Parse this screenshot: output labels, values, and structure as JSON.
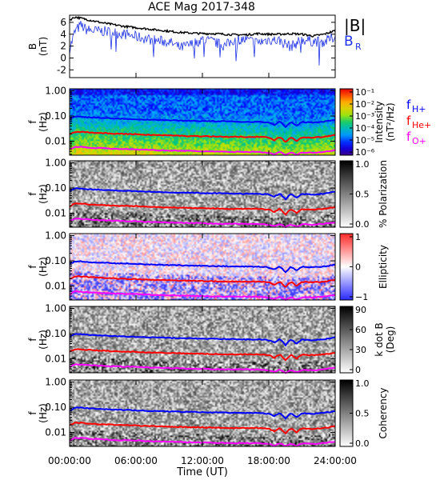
{
  "chart_data": {
    "title": "ACE Mag 2017-348",
    "type": "line",
    "x_ticks": [
      "00:00:00",
      "06:00:00",
      "12:00:00",
      "18:00:00",
      "24:00:00"
    ],
    "x_tick_hours": [
      0,
      6,
      12,
      18,
      24
    ],
    "x_range_hours": [
      0,
      24
    ],
    "xlabel": "Time (UT)",
    "colors": {
      "b_total": "#000000",
      "b_r": "#1f33e6",
      "h": "#0000ff",
      "he": "#ff0000",
      "o": "#ff00ff"
    },
    "panels": {
      "field": {
        "ylabel_line1": "B",
        "ylabel_line2": "(nT)",
        "y_ticks": [
          "6",
          "4",
          "2",
          "0",
          "-2"
        ],
        "y_tick_values": [
          6,
          4,
          2,
          0,
          -2
        ],
        "ylim": [
          -3.3,
          7.2
        ],
        "legend": {
          "total": "|B|",
          "r_main": "B",
          "r_sub": "R"
        },
        "b_total": {
          "hours": [
            0,
            0.5,
            1,
            1.5,
            2,
            3,
            4,
            5,
            6,
            7,
            8,
            9,
            10,
            11,
            12,
            13,
            14,
            15,
            16,
            17,
            18,
            19,
            20,
            21,
            22,
            23,
            24
          ],
          "values": [
            6.4,
            6.9,
            6.7,
            6.5,
            6.3,
            5.9,
            5.6,
            5.3,
            5.1,
            4.9,
            4.7,
            4.5,
            4.3,
            4.2,
            4.1,
            4.1,
            4.0,
            3.9,
            3.9,
            4.1,
            4.0,
            4.0,
            4.1,
            4.0,
            3.7,
            4.0,
            4.6
          ]
        },
        "b_r": {
          "hours": [
            0,
            0.5,
            1,
            1.5,
            2,
            3,
            4,
            5,
            6,
            7,
            8,
            9,
            10,
            11,
            12,
            13,
            14,
            15,
            16,
            17,
            18,
            19,
            20,
            21,
            22,
            23,
            24
          ],
          "values": [
            1.5,
            4.5,
            5.5,
            4.8,
            4.6,
            4.5,
            4.3,
            4.0,
            3.6,
            3.2,
            2.9,
            2.7,
            1.7,
            2.3,
            3.1,
            2.7,
            2.0,
            3.2,
            3.0,
            2.6,
            3.1,
            2.9,
            1.9,
            3.1,
            2.8,
            2.7,
            3.6
          ]
        }
      },
      "spectra": [
        {
          "key": "intensity",
          "cbar_title1": "Intensity",
          "cbar_title2": "(nT²/Hz)",
          "cbar_ticks": [
            "10⁻¹",
            "10⁻²",
            "10⁻³",
            "10⁻⁴",
            "10⁻⁵",
            "10⁻⁶"
          ],
          "cbar_type": "rainbow",
          "show_legend": true
        },
        {
          "key": "polarization",
          "cbar_title1": "% Polarization",
          "cbar_title2": "",
          "cbar_ticks": [
            "1.0",
            "0.5",
            "0.0"
          ],
          "cbar_type": "gray",
          "show_legend": false
        },
        {
          "key": "ellipticity",
          "cbar_title1": "Ellipticity",
          "cbar_title2": "",
          "cbar_ticks": [
            "1",
            "0",
            "−1"
          ],
          "cbar_type": "bwr",
          "show_legend": false
        },
        {
          "key": "kdotb",
          "cbar_title1": "k dot B",
          "cbar_title2": "(Deg)",
          "cbar_ticks": [
            "90",
            "60",
            "30",
            "0"
          ],
          "cbar_type": "gray",
          "show_legend": false
        },
        {
          "key": "coherency",
          "cbar_title1": "Coherency",
          "cbar_title2": "",
          "cbar_ticks": [
            "1.0",
            "0.5",
            "0.0"
          ],
          "cbar_type": "gray",
          "show_legend": false
        }
      ],
      "spectra_ylabel_line1": "f",
      "spectra_ylabel_line2": "(Hz)",
      "freq_ticks": [
        "1.00",
        "0.10",
        "0.01"
      ],
      "freq_tick_values": [
        1.0,
        0.1,
        0.01
      ],
      "freq_range": [
        0.0028,
        1.2
      ],
      "legend": {
        "h_main": "f",
        "h_sub": "H+",
        "he_main": "f",
        "he_sub": "He+",
        "o_main": "f",
        "o_sub": "O+"
      },
      "gyro_hours": [
        0,
        0.5,
        1,
        2,
        3,
        4,
        5,
        6,
        7,
        8,
        9,
        10,
        11,
        12,
        13,
        14,
        15,
        16,
        17,
        18,
        18.5,
        19,
        19.5,
        20,
        20.5,
        21,
        22,
        23,
        24
      ],
      "f_h": [
        0.075,
        0.095,
        0.095,
        0.088,
        0.085,
        0.08,
        0.078,
        0.075,
        0.072,
        0.07,
        0.068,
        0.066,
        0.065,
        0.063,
        0.062,
        0.061,
        0.06,
        0.059,
        0.059,
        0.055,
        0.045,
        0.06,
        0.035,
        0.058,
        0.04,
        0.058,
        0.055,
        0.06,
        0.07
      ],
      "f_he": [
        0.019,
        0.024,
        0.024,
        0.022,
        0.021,
        0.02,
        0.0195,
        0.019,
        0.018,
        0.0175,
        0.017,
        0.0165,
        0.016,
        0.016,
        0.0155,
        0.015,
        0.015,
        0.015,
        0.015,
        0.014,
        0.011,
        0.015,
        0.009,
        0.0145,
        0.01,
        0.0145,
        0.014,
        0.015,
        0.0175
      ],
      "f_o": [
        0.0048,
        0.006,
        0.006,
        0.0055,
        0.0053,
        0.005,
        0.0049,
        0.0048,
        0.0046,
        0.0044,
        0.0043,
        0.0042,
        0.0041,
        0.004,
        0.0039,
        0.0038,
        0.0038,
        0.0038,
        0.0038,
        0.0035,
        0.003,
        0.0038,
        0.0028,
        0.0036,
        0.0029,
        0.0036,
        0.0035,
        0.0038,
        0.0044
      ]
    }
  }
}
